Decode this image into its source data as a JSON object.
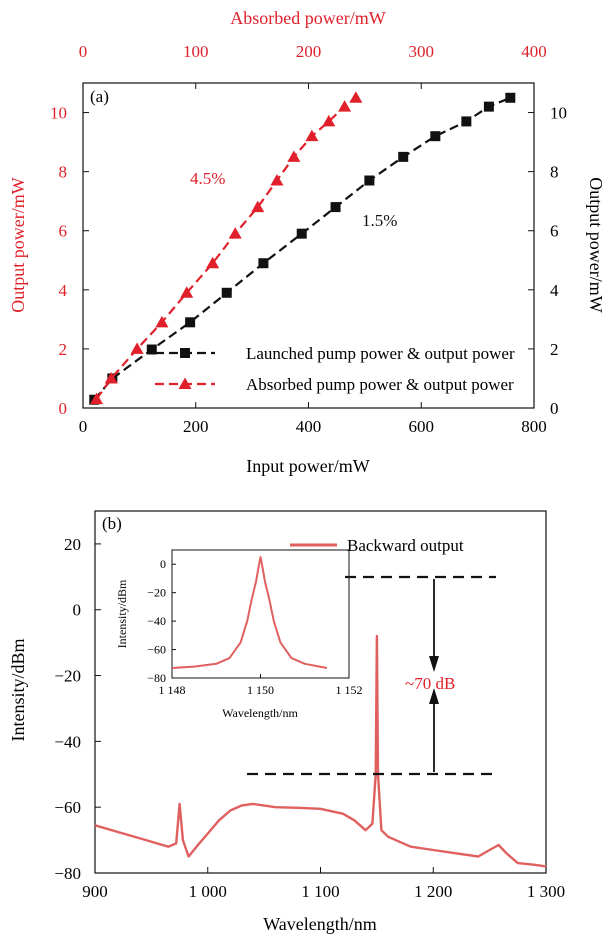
{
  "colors": {
    "red": "#e0202a",
    "black": "#111111",
    "spectrum": "#e06060"
  },
  "chart_data": [
    {
      "type": "line",
      "panel_label": "(a)",
      "xlabel": "Input power/mW",
      "x2label": "Absorbed power/mW",
      "ylabel_left": "Output power/mW",
      "ylabel_right": "Output power/mW",
      "xlim": [
        0,
        800
      ],
      "x2lim": [
        0,
        400
      ],
      "ylim": [
        0,
        11
      ],
      "xticks": [
        "0",
        "200",
        "400",
        "600",
        "800"
      ],
      "x2ticks": [
        "0",
        "100",
        "200",
        "300",
        "400"
      ],
      "yticks": [
        "0",
        "2",
        "4",
        "6",
        "8",
        "10"
      ],
      "legend_position": "lower-right",
      "series": [
        {
          "name": "Launched pump power & output power",
          "marker": "square",
          "axis": "bottom",
          "x": [
            20,
            52,
            122,
            190,
            255,
            320,
            388,
            448,
            508,
            568,
            625,
            680,
            720,
            758
          ],
          "y": [
            0.28,
            1.0,
            1.98,
            2.9,
            3.9,
            4.9,
            5.9,
            6.8,
            7.7,
            8.5,
            9.2,
            9.7,
            10.2,
            10.5
          ]
        },
        {
          "name": "Absorbed pump power & output power",
          "marker": "triangle",
          "axis": "top",
          "x": [
            12,
            25,
            48,
            70,
            92,
            115,
            135,
            155,
            172,
            187,
            203,
            218,
            232,
            242
          ],
          "y": [
            0.3,
            1.0,
            2.0,
            2.9,
            3.9,
            4.9,
            5.9,
            6.8,
            7.7,
            8.5,
            9.2,
            9.7,
            10.2,
            10.5
          ]
        }
      ],
      "annotations": [
        {
          "text": "4.5%",
          "color": "red"
        },
        {
          "text": "1.5%",
          "color": "black"
        }
      ]
    },
    {
      "type": "line",
      "panel_label": "(b)",
      "xlabel": "Wavelength/nm",
      "ylabel": "Intensity/dBm",
      "xlim": [
        900,
        1300
      ],
      "ylim": [
        -80,
        30
      ],
      "xticks": [
        "900",
        "1 000",
        "1 100",
        "1 200",
        "1 300"
      ],
      "yticks": [
        "20",
        "0",
        "−20",
        "−40",
        "−60",
        "−80"
      ],
      "legend_position": "top-right",
      "series": [
        {
          "name": "Backward output",
          "x": [
            900,
            920,
            940,
            955,
            965,
            972,
            975,
            978,
            983,
            990,
            1000,
            1010,
            1020,
            1030,
            1040,
            1060,
            1080,
            1100,
            1120,
            1130,
            1140,
            1146,
            1149,
            1150,
            1151,
            1154,
            1160,
            1180,
            1200,
            1220,
            1240,
            1250,
            1258,
            1265,
            1275,
            1290,
            1300
          ],
          "y": [
            -65.5,
            -67.5,
            -69.5,
            -71,
            -72,
            -71,
            -59,
            -70,
            -75,
            -72,
            -68,
            -64,
            -61,
            -59.5,
            -59,
            -60,
            -60.2,
            -60.5,
            -62,
            -64,
            -67,
            -65,
            -50,
            -8,
            -50,
            -67,
            -69,
            -72,
            -73,
            -74,
            -75,
            -73,
            -71.5,
            -74,
            -77,
            -77.5,
            -78
          ]
        }
      ],
      "annotations": [
        {
          "text": "~70 dB",
          "color": "red"
        }
      ],
      "inset": {
        "xlabel": "Wavelength/nm",
        "ylabel": "Intensity/dBm",
        "xlim": [
          1148,
          1152
        ],
        "ylim": [
          -80,
          10
        ],
        "xticks": [
          "1 148",
          "1 150",
          "1 152"
        ],
        "yticks": [
          "0",
          "−20",
          "−40",
          "−60",
          "−80"
        ],
        "x": [
          1148.0,
          1148.5,
          1149.0,
          1149.3,
          1149.55,
          1149.7,
          1149.8,
          1149.9,
          1149.95,
          1150.0,
          1150.05,
          1150.1,
          1150.2,
          1150.3,
          1150.45,
          1150.7,
          1151.0,
          1151.5
        ],
        "y": [
          -73,
          -72,
          -70,
          -66,
          -55,
          -40,
          -25,
          -12,
          -3,
          5,
          -3,
          -12,
          -25,
          -40,
          -55,
          -66,
          -70,
          -73
        ]
      }
    }
  ]
}
